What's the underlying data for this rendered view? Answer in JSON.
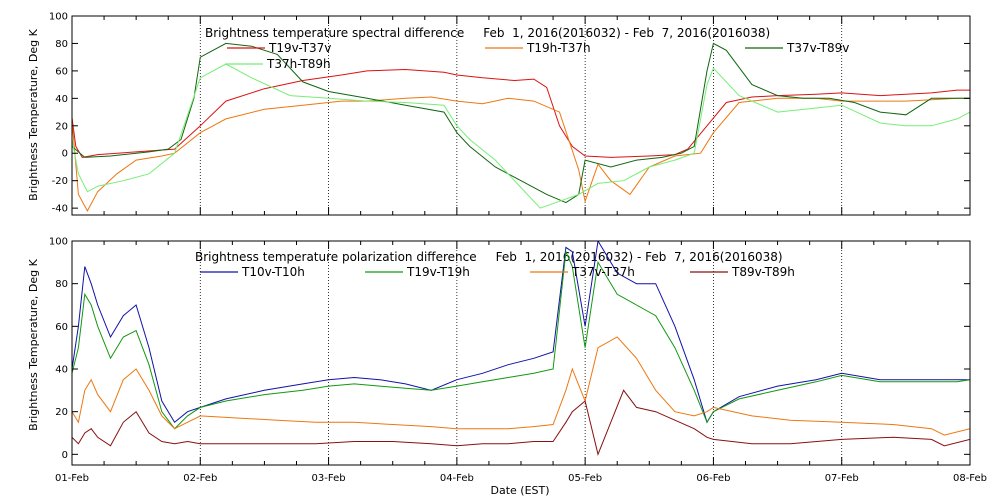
{
  "xaxis": {
    "label": "Date (EST)",
    "ticks": [
      "01-Feb",
      "02-Feb",
      "03-Feb",
      "04-Feb",
      "05-Feb",
      "06-Feb",
      "07-Feb",
      "08-Feb"
    ]
  },
  "chart_data": [
    {
      "type": "line",
      "title": "Brightness temperature spectral difference     Feb  1, 2016(2016032) - Feb  7, 2016(2016038)",
      "ylabel": "Brightness Temperature, Deg K",
      "xlim": [
        0,
        7
      ],
      "ylim": [
        -45,
        100
      ],
      "yticks": [
        -40,
        -20,
        0,
        20,
        40,
        60,
        80,
        100
      ],
      "grid": "dotted, at day boundaries",
      "legend": "top",
      "series": [
        {
          "name": "T19v-T37v",
          "color": "#dd1111",
          "x": [
            0,
            0.03,
            0.08,
            0.2,
            0.5,
            0.8,
            1.0,
            1.2,
            1.5,
            1.8,
            2.1,
            2.3,
            2.6,
            2.9,
            3.0,
            3.2,
            3.45,
            3.6,
            3.7,
            3.8,
            3.9,
            4.0,
            4.2,
            4.5,
            4.7,
            4.8,
            4.95,
            5.1,
            5.3,
            5.5,
            5.8,
            6.0,
            6.3,
            6.5,
            6.7,
            6.9,
            7.0
          ],
          "y": [
            26,
            5,
            -3,
            -1,
            1,
            3,
            20,
            38,
            47,
            53,
            57,
            60,
            61,
            59,
            57,
            55,
            53,
            54,
            48,
            20,
            5,
            -2,
            -3,
            -2,
            -1,
            3,
            20,
            37,
            41,
            42,
            43,
            44,
            42,
            43,
            44,
            46,
            46
          ]
        },
        {
          "name": "T19h-T37h",
          "color": "#ee7711",
          "x": [
            0,
            0.05,
            0.12,
            0.2,
            0.35,
            0.5,
            0.7,
            0.8,
            1.0,
            1.2,
            1.5,
            1.8,
            2.1,
            2.3,
            2.6,
            2.8,
            3.0,
            3.2,
            3.4,
            3.6,
            3.8,
            3.95,
            4.0,
            4.1,
            4.2,
            4.35,
            4.5,
            4.7,
            4.9,
            5.0,
            5.2,
            5.5,
            5.8,
            6.0,
            6.3,
            6.5,
            6.7,
            6.9,
            7.0
          ],
          "y": [
            24,
            -30,
            -42,
            -28,
            -15,
            -5,
            -2,
            0,
            15,
            25,
            32,
            35,
            38,
            38,
            40,
            41,
            38,
            36,
            40,
            38,
            30,
            -12,
            -35,
            -8,
            -20,
            -30,
            -10,
            -2,
            0,
            15,
            37,
            40,
            40,
            38,
            38,
            38,
            39,
            40,
            40
          ]
        },
        {
          "name": "T37v-T89v",
          "color": "#116611",
          "x": [
            0,
            0.1,
            0.3,
            0.6,
            0.75,
            0.85,
            0.95,
            1.0,
            1.2,
            1.4,
            1.6,
            1.8,
            2.0,
            2.3,
            2.6,
            2.9,
            3.0,
            3.1,
            3.3,
            3.5,
            3.7,
            3.85,
            3.95,
            4.0,
            4.2,
            4.4,
            4.6,
            4.75,
            4.85,
            4.95,
            5.0,
            5.1,
            5.3,
            5.5,
            5.7,
            5.9,
            6.1,
            6.3,
            6.5,
            6.7,
            6.9,
            7.0
          ],
          "y": [
            5,
            -3,
            -2,
            1,
            3,
            10,
            40,
            70,
            80,
            78,
            72,
            52,
            45,
            40,
            35,
            30,
            15,
            5,
            -10,
            -20,
            -30,
            -36,
            -30,
            -5,
            -10,
            -5,
            -3,
            0,
            5,
            60,
            80,
            75,
            50,
            42,
            40,
            40,
            37,
            30,
            28,
            40,
            40,
            40
          ]
        },
        {
          "name": "T37h-T89h",
          "color": "#77ee77",
          "x": [
            0,
            0.05,
            0.12,
            0.2,
            0.4,
            0.6,
            0.8,
            1.0,
            1.2,
            1.4,
            1.7,
            2.0,
            2.3,
            2.6,
            2.9,
            3.0,
            3.1,
            3.3,
            3.5,
            3.65,
            3.8,
            3.95,
            4.1,
            4.3,
            4.5,
            4.7,
            4.85,
            4.95,
            5.0,
            5.2,
            5.5,
            5.8,
            6.0,
            6.3,
            6.5,
            6.7,
            6.9,
            7.0
          ],
          "y": [
            10,
            -15,
            -28,
            -24,
            -20,
            -15,
            0,
            55,
            65,
            55,
            42,
            40,
            38,
            37,
            35,
            20,
            10,
            -5,
            -25,
            -40,
            -35,
            -30,
            -22,
            -20,
            -10,
            -5,
            0,
            50,
            62,
            42,
            30,
            33,
            35,
            22,
            20,
            20,
            25,
            30
          ]
        }
      ]
    },
    {
      "type": "line",
      "title": "Brightness temperature polarization difference     Feb  1, 2016(2016032) - Feb  7, 2016(2016038)",
      "ylabel": "Brightness Temperature, Deg K",
      "xlim": [
        0,
        7
      ],
      "ylim": [
        -5,
        100
      ],
      "yticks": [
        0,
        20,
        40,
        60,
        80,
        100
      ],
      "grid": "dotted, at day boundaries",
      "legend": "top",
      "series": [
        {
          "name": "T10v-T10h",
          "color": "#1111aa",
          "x": [
            0,
            0.05,
            0.1,
            0.15,
            0.2,
            0.3,
            0.4,
            0.5,
            0.6,
            0.7,
            0.8,
            0.9,
            1.0,
            1.2,
            1.5,
            1.8,
            2.0,
            2.2,
            2.4,
            2.6,
            2.8,
            3.0,
            3.2,
            3.4,
            3.6,
            3.75,
            3.85,
            3.9,
            4.0,
            4.1,
            4.25,
            4.4,
            4.55,
            4.7,
            4.85,
            4.95,
            5.0,
            5.2,
            5.5,
            5.8,
            6.0,
            6.3,
            6.6,
            6.9,
            7.0
          ],
          "y": [
            40,
            60,
            88,
            80,
            70,
            55,
            65,
            70,
            50,
            25,
            15,
            20,
            22,
            26,
            30,
            33,
            35,
            36,
            35,
            33,
            30,
            35,
            38,
            42,
            45,
            48,
            97,
            95,
            60,
            100,
            85,
            80,
            80,
            60,
            35,
            15,
            20,
            27,
            32,
            35,
            38,
            35,
            35,
            35,
            35
          ]
        },
        {
          "name": "T19v-T19h",
          "color": "#119911",
          "x": [
            0,
            0.05,
            0.1,
            0.15,
            0.2,
            0.3,
            0.4,
            0.5,
            0.6,
            0.7,
            0.8,
            0.9,
            1.0,
            1.2,
            1.5,
            1.8,
            2.0,
            2.2,
            2.4,
            2.6,
            2.8,
            3.0,
            3.2,
            3.4,
            3.6,
            3.75,
            3.85,
            3.9,
            4.0,
            4.1,
            4.25,
            4.4,
            4.55,
            4.7,
            4.85,
            4.95,
            5.0,
            5.2,
            5.5,
            5.8,
            6.0,
            6.3,
            6.6,
            6.9,
            7.0
          ],
          "y": [
            38,
            50,
            75,
            70,
            60,
            45,
            55,
            58,
            42,
            20,
            12,
            18,
            22,
            25,
            28,
            30,
            32,
            33,
            32,
            31,
            30,
            32,
            34,
            36,
            38,
            40,
            95,
            88,
            50,
            90,
            75,
            70,
            65,
            50,
            30,
            15,
            20,
            26,
            30,
            34,
            37,
            34,
            34,
            34,
            35
          ]
        },
        {
          "name": "T37v-T37h",
          "color": "#ee7711",
          "x": [
            0,
            0.05,
            0.1,
            0.15,
            0.2,
            0.3,
            0.4,
            0.5,
            0.6,
            0.7,
            0.8,
            0.9,
            1.0,
            1.3,
            1.6,
            1.9,
            2.2,
            2.5,
            2.8,
            3.0,
            3.2,
            3.4,
            3.6,
            3.75,
            3.85,
            3.9,
            4.0,
            4.1,
            4.25,
            4.4,
            4.55,
            4.7,
            4.85,
            4.95,
            5.0,
            5.3,
            5.6,
            6.0,
            6.4,
            6.7,
            6.8,
            7.0
          ],
          "y": [
            20,
            15,
            30,
            35,
            28,
            20,
            35,
            40,
            30,
            18,
            12,
            15,
            18,
            17,
            16,
            15,
            15,
            14,
            13,
            12,
            12,
            12,
            13,
            14,
            30,
            40,
            25,
            50,
            55,
            45,
            30,
            20,
            18,
            20,
            22,
            18,
            16,
            15,
            14,
            12,
            9,
            12
          ]
        },
        {
          "name": "T89v-T89h",
          "color": "#881111",
          "x": [
            0,
            0.05,
            0.1,
            0.15,
            0.2,
            0.3,
            0.4,
            0.5,
            0.6,
            0.7,
            0.8,
            0.9,
            1.0,
            1.3,
            1.6,
            1.9,
            2.2,
            2.5,
            2.8,
            3.0,
            3.2,
            3.4,
            3.6,
            3.75,
            3.85,
            3.9,
            4.0,
            4.1,
            4.2,
            4.3,
            4.4,
            4.55,
            4.7,
            4.85,
            4.95,
            5.0,
            5.3,
            5.6,
            6.0,
            6.4,
            6.7,
            6.8,
            7.0
          ],
          "y": [
            8,
            5,
            10,
            12,
            8,
            4,
            15,
            20,
            10,
            6,
            5,
            6,
            5,
            5,
            5,
            5,
            6,
            6,
            5,
            4,
            5,
            5,
            6,
            6,
            15,
            20,
            25,
            0,
            15,
            30,
            22,
            20,
            16,
            12,
            8,
            7,
            5,
            5,
            7,
            8,
            7,
            4,
            7
          ]
        }
      ]
    }
  ]
}
